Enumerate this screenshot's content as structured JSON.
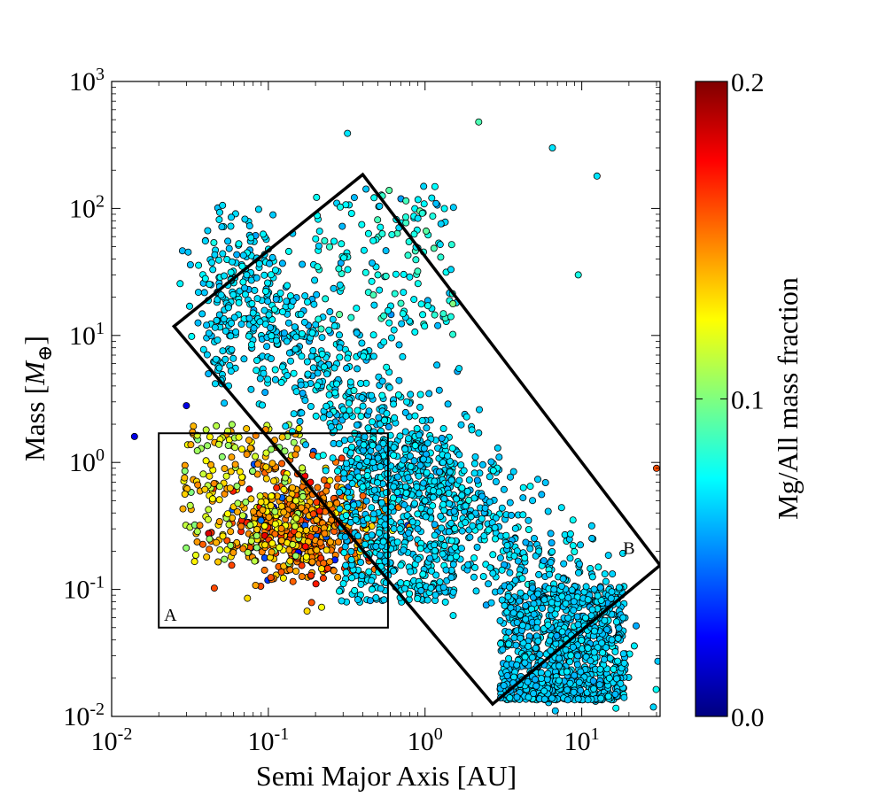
{
  "chart_data": {
    "type": "scatter",
    "title": "",
    "xlabel": "Semi Major Axis [AU]",
    "ylabel_text": "Mass [",
    "ylabel_symbol": "M",
    "ylabel_subscript": "⊕",
    "ylabel_close": "]",
    "x_scale": "log",
    "y_scale": "log",
    "xlim": [
      0.01,
      31.6
    ],
    "ylim": [
      0.01,
      1000
    ],
    "x_ticks": [
      {
        "base": "10",
        "exp": "-2",
        "value": 0.01
      },
      {
        "base": "10",
        "exp": "-1",
        "value": 0.1
      },
      {
        "base": "10",
        "exp": "0",
        "value": 1
      },
      {
        "base": "10",
        "exp": "1",
        "value": 10
      }
    ],
    "y_ticks": [
      {
        "base": "10",
        "exp": "-2",
        "value": 0.01
      },
      {
        "base": "10",
        "exp": "-1",
        "value": 0.1
      },
      {
        "base": "10",
        "exp": "0",
        "value": 1
      },
      {
        "base": "10",
        "exp": "1",
        "value": 10
      },
      {
        "base": "10",
        "exp": "2",
        "value": 100
      },
      {
        "base": "10",
        "exp": "3",
        "value": 1000
      }
    ],
    "grid": false,
    "colorbar": {
      "label": "Mg/All mass fraction",
      "min": 0.0,
      "max": 0.2,
      "ticks": [
        {
          "label": "0.0",
          "value": 0.0
        },
        {
          "label": "0.1",
          "value": 0.1
        },
        {
          "label": "0.2",
          "value": 0.2
        }
      ],
      "colormap": "jet"
    },
    "regions": [
      {
        "label": "A",
        "shape": "rectangle",
        "corners": [
          [
            0.02,
            0.05
          ],
          [
            0.58,
            0.05
          ],
          [
            0.58,
            1.7
          ],
          [
            0.02,
            1.7
          ]
        ]
      },
      {
        "label": "B",
        "shape": "rotated-rectangle",
        "corners": [
          [
            0.025,
            11.8
          ],
          [
            0.4,
            185
          ],
          [
            31.6,
            0.155
          ],
          [
            2.7,
            0.0125
          ]
        ]
      }
    ],
    "series": [
      {
        "marker": "circle",
        "points_sample": [
          {
            "x": 0.014,
            "y": 1.6,
            "c": 0.02
          },
          {
            "x": 0.03,
            "y": 2.8,
            "c": 0.02
          },
          {
            "x": 0.32,
            "y": 390,
            "c": 0.07
          },
          {
            "x": 2.2,
            "y": 480,
            "c": 0.09
          },
          {
            "x": 6.5,
            "y": 300,
            "c": 0.07
          },
          {
            "x": 12.5,
            "y": 180,
            "c": 0.07
          },
          {
            "x": 9.5,
            "y": 30,
            "c": 0.08
          },
          {
            "x": 30,
            "y": 0.9,
            "c": 0.16
          },
          {
            "x": 0.2,
            "y": 0.3,
            "c": 0.15
          },
          {
            "x": 0.15,
            "y": 0.5,
            "c": 0.12
          },
          {
            "x": 1.0,
            "y": 0.5,
            "c": 0.07
          },
          {
            "x": 15,
            "y": 0.02,
            "c": 0.07
          },
          {
            "x": 0.08,
            "y": 15,
            "c": 0.07
          },
          {
            "x": 0.5,
            "y": 30,
            "c": 0.08
          }
        ]
      }
    ]
  }
}
